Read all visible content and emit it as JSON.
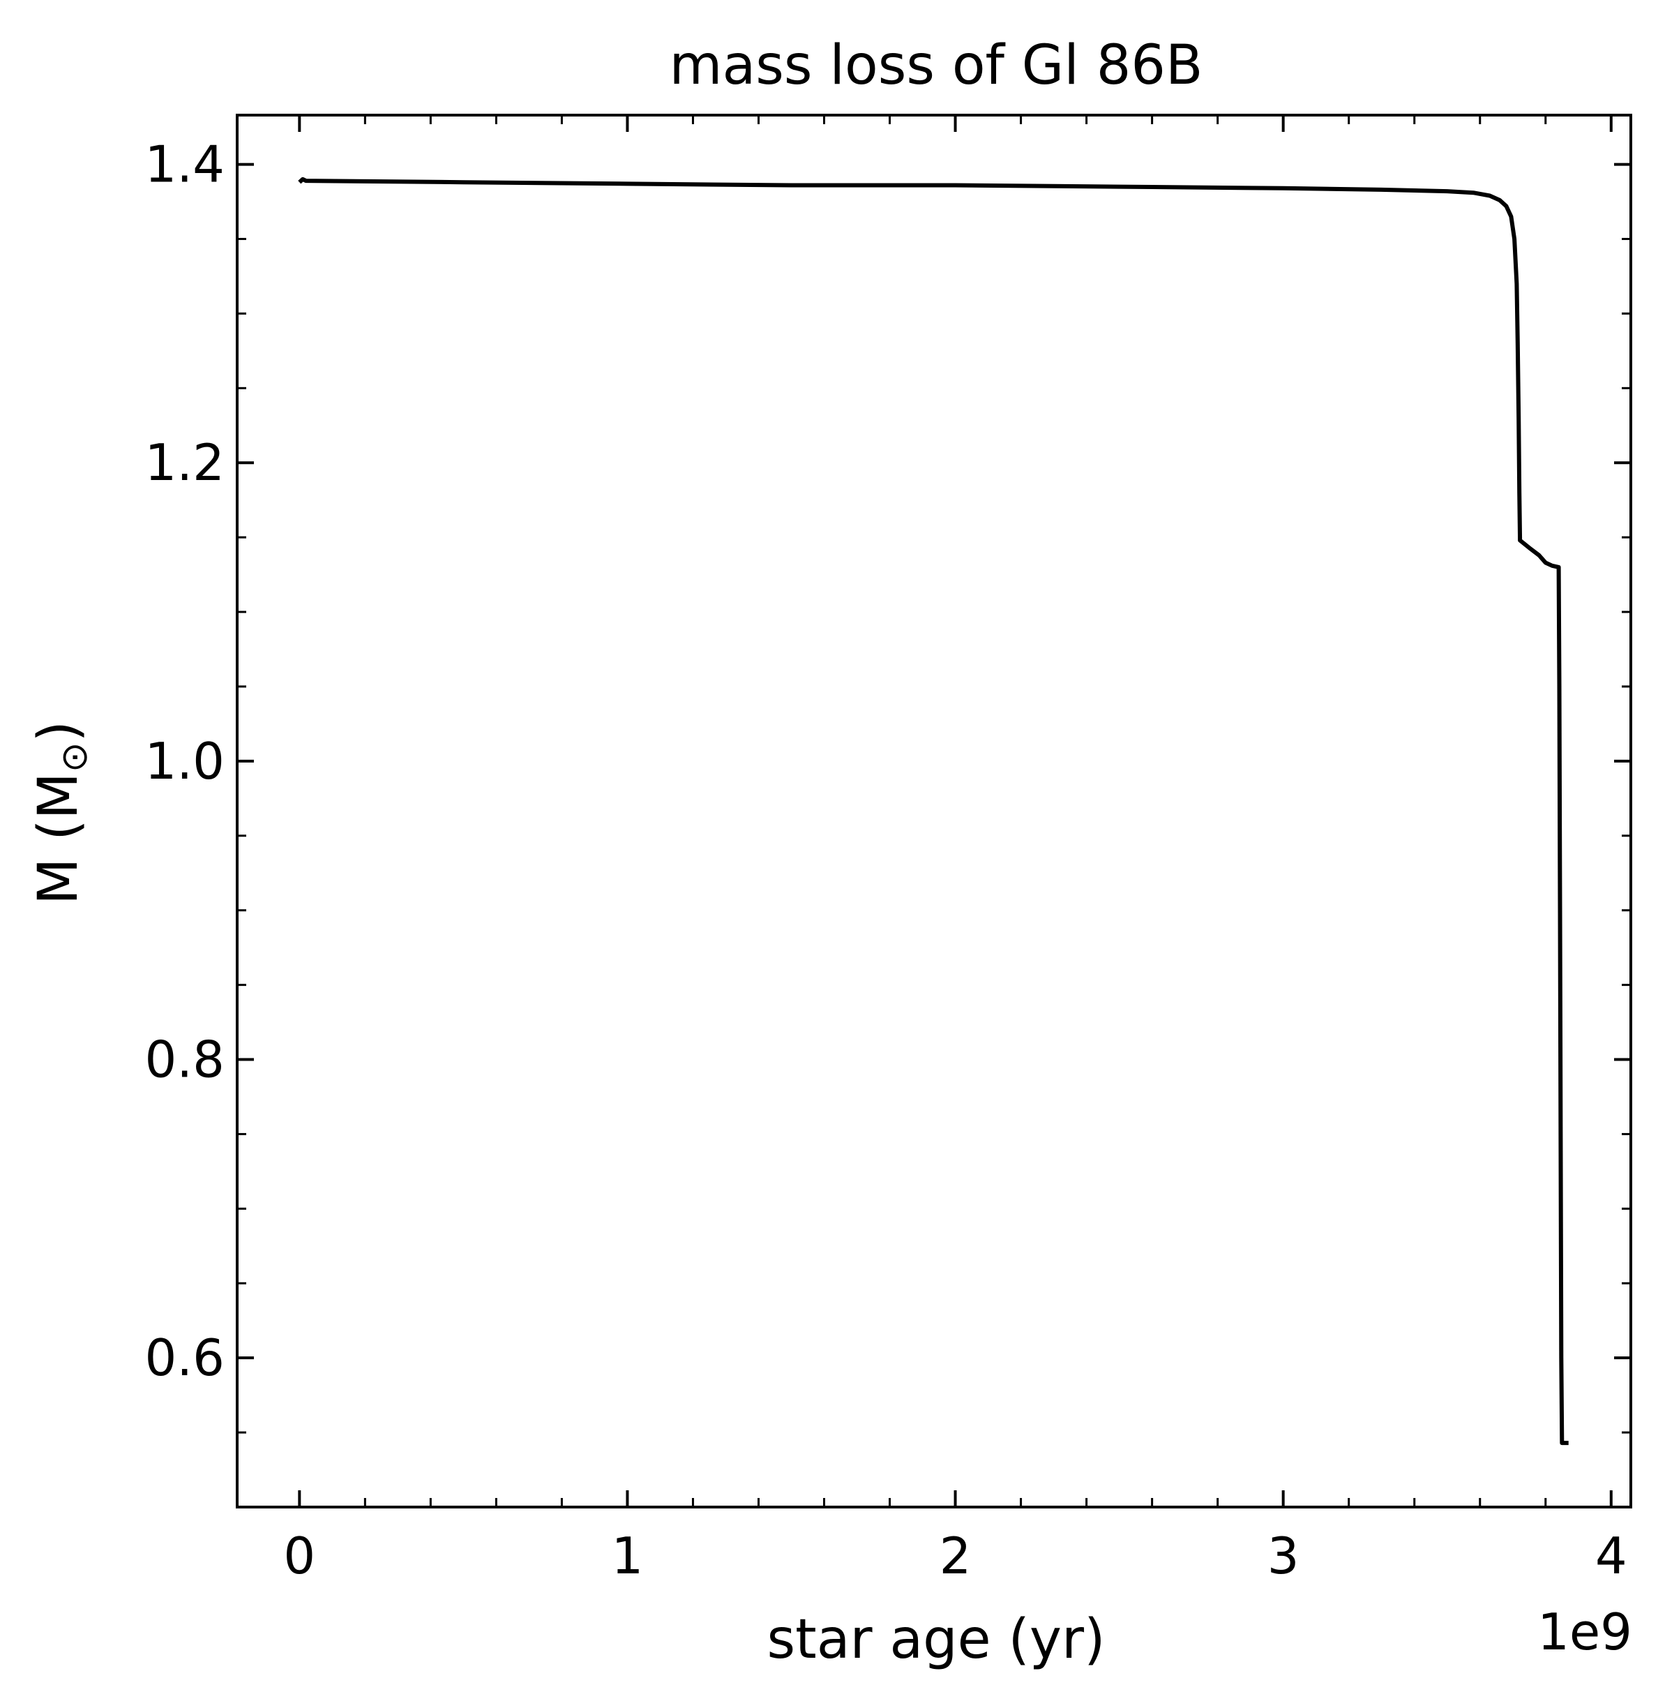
{
  "chart_data": {
    "type": "line",
    "title": "mass loss of Gl 86B",
    "xlabel": "star age (yr)",
    "ylabel_main": "M (M",
    "ylabel_sub": "⊙",
    "ylabel_close": ")",
    "x_offset_label": "1e9",
    "xlim": [
      -0.19,
      4.06
    ],
    "ylim": [
      0.5,
      1.433
    ],
    "x_major_ticks": [
      0,
      1,
      2,
      3,
      4
    ],
    "x_tick_labels": [
      "0",
      "1",
      "2",
      "3",
      "4"
    ],
    "x_minor_step": 0.2,
    "y_major_ticks": [
      0.6,
      0.8,
      1.0,
      1.2,
      1.4
    ],
    "y_tick_labels": [
      "0.6",
      "0.8",
      "1.0",
      "1.2",
      "1.4"
    ],
    "y_minor_step": 0.05,
    "grid": false,
    "series": [
      {
        "color": "#000000",
        "points": [
          [
            0.0,
            1.388
          ],
          [
            0.01,
            1.39
          ],
          [
            0.02,
            1.389
          ],
          [
            0.5,
            1.388
          ],
          [
            1.0,
            1.387
          ],
          [
            1.5,
            1.386
          ],
          [
            2.0,
            1.386
          ],
          [
            2.5,
            1.385
          ],
          [
            3.0,
            1.384
          ],
          [
            3.3,
            1.383
          ],
          [
            3.5,
            1.382
          ],
          [
            3.58,
            1.381
          ],
          [
            3.63,
            1.379
          ],
          [
            3.66,
            1.376
          ],
          [
            3.68,
            1.372
          ],
          [
            3.695,
            1.365
          ],
          [
            3.705,
            1.35
          ],
          [
            3.712,
            1.32
          ],
          [
            3.715,
            1.28
          ],
          [
            3.718,
            1.23
          ],
          [
            3.72,
            1.18
          ],
          [
            3.722,
            1.148
          ],
          [
            3.75,
            1.143
          ],
          [
            3.78,
            1.138
          ],
          [
            3.8,
            1.133
          ],
          [
            3.82,
            1.131
          ],
          [
            3.84,
            1.13
          ],
          [
            3.842,
            1.05
          ],
          [
            3.844,
            0.9
          ],
          [
            3.846,
            0.75
          ],
          [
            3.848,
            0.6
          ],
          [
            3.85,
            0.543
          ],
          [
            3.87,
            0.543
          ]
        ]
      }
    ]
  }
}
